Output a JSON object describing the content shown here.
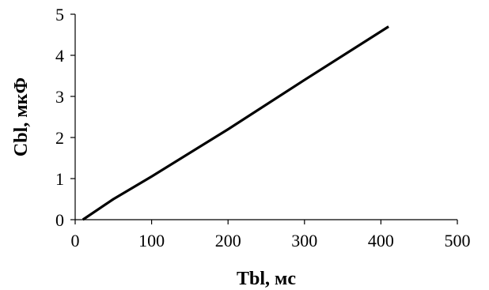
{
  "chart_data": {
    "type": "line",
    "xlabel": "Tbl, мс",
    "ylabel": "Cbl, мкФ",
    "xlim": [
      0,
      500
    ],
    "ylim": [
      0,
      5
    ],
    "x_ticks": [
      "0",
      "100",
      "200",
      "300",
      "400",
      "500"
    ],
    "y_ticks": [
      "0",
      "1",
      "2",
      "3",
      "4",
      "5"
    ],
    "grid": false,
    "legend": "none",
    "series": [
      {
        "x": [
          10,
          50,
          100,
          200,
          300,
          410
        ],
        "y": [
          0,
          0.5,
          1.05,
          2.2,
          3.4,
          4.7
        ],
        "color": "#000000"
      }
    ],
    "colors": {
      "line": "#000000",
      "axis": "#000000",
      "background": "#ffffff"
    }
  }
}
